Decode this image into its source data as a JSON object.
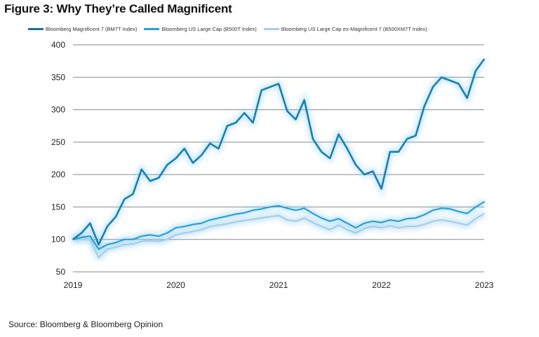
{
  "chart_data": {
    "type": "line",
    "title": "Figure 3: Why They’re Called Magnificent",
    "xlabel": "",
    "ylabel": "",
    "ylim": [
      50,
      400
    ],
    "yticks": [
      "50",
      "100",
      "150",
      "200",
      "250",
      "300",
      "350",
      "400"
    ],
    "xticks": [
      "2019",
      "2020",
      "2021",
      "2022",
      "2023"
    ],
    "grid": "horizontal",
    "legend_position": "top",
    "x": [
      "2019-01",
      "2019-02",
      "2019-03",
      "2019-04",
      "2019-05",
      "2019-06",
      "2019-07",
      "2019-08",
      "2019-09",
      "2019-10",
      "2019-11",
      "2019-12",
      "2020-01",
      "2020-02",
      "2020-03",
      "2020-04",
      "2020-05",
      "2020-06",
      "2020-07",
      "2020-08",
      "2020-09",
      "2020-10",
      "2020-11",
      "2020-12",
      "2021-01",
      "2021-02",
      "2021-03",
      "2021-04",
      "2021-05",
      "2021-06",
      "2021-07",
      "2021-08",
      "2021-09",
      "2021-10",
      "2021-11",
      "2021-12",
      "2022-01",
      "2022-02",
      "2022-03",
      "2022-04",
      "2022-05",
      "2022-06",
      "2022-07",
      "2022-08",
      "2022-09",
      "2022-10",
      "2022-11",
      "2022-12",
      "2023-01"
    ],
    "series": [
      {
        "name": "Bloomberg Magnificent 7 (BM7T Index)",
        "color": "#1a7fae",
        "values": [
          100,
          110,
          125,
          92,
          120,
          135,
          162,
          170,
          208,
          190,
          195,
          215,
          225,
          240,
          218,
          230,
          248,
          240,
          275,
          280,
          295,
          280,
          330,
          335,
          340,
          298,
          285,
          315,
          255,
          235,
          225,
          262,
          240,
          215,
          200,
          205,
          178,
          235,
          235,
          255,
          260,
          305,
          335,
          350,
          345,
          340,
          318,
          360,
          378
        ]
      },
      {
        "name": "Bloomberg US Large Cap (B500T Index)",
        "color": "#2a9fd6",
        "values": [
          100,
          103,
          105,
          85,
          92,
          95,
          100,
          100,
          105,
          107,
          105,
          110,
          118,
          120,
          123,
          125,
          130,
          133,
          136,
          139,
          141,
          145,
          147,
          150,
          152,
          148,
          145,
          148,
          140,
          133,
          128,
          132,
          125,
          118,
          125,
          128,
          126,
          130,
          128,
          132,
          133,
          138,
          145,
          148,
          147,
          143,
          140,
          150,
          158
        ]
      },
      {
        "name": "Bloomberg US Large Cap ex-Magnificent 7 (B500XM7T Index)",
        "color": "#a9cbe6",
        "values": [
          100,
          100,
          100,
          72,
          85,
          88,
          92,
          93,
          97,
          98,
          97,
          100,
          107,
          110,
          112,
          115,
          120,
          122,
          124,
          127,
          129,
          131,
          133,
          135,
          137,
          130,
          128,
          133,
          126,
          120,
          115,
          122,
          115,
          110,
          117,
          120,
          118,
          121,
          118,
          120,
          120,
          123,
          128,
          130,
          128,
          125,
          122,
          132,
          140
        ]
      }
    ],
    "source": "Source: Bloomberg & Bloomberg Opinion"
  }
}
